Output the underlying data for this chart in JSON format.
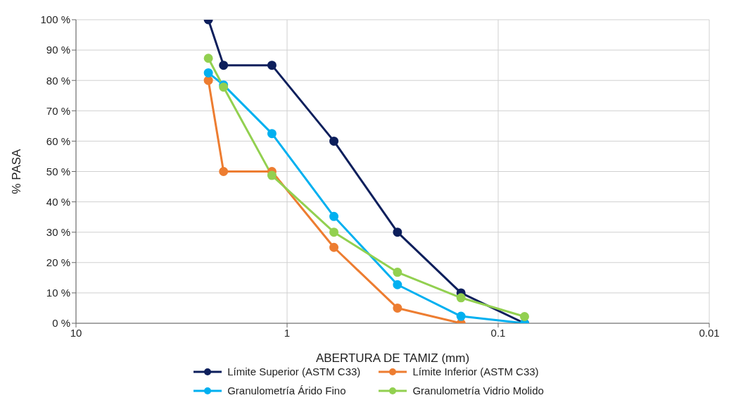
{
  "chart_data": {
    "type": "line",
    "xlabel": "ABERTURA DE TAMIZ (mm)",
    "ylabel": "% PASA",
    "x": [
      2.36,
      2.0,
      1.18,
      0.6,
      0.3,
      0.15,
      0.075
    ],
    "series": [
      {
        "name": "Límite Superior (ASTM C33)",
        "color": "#0d1f5c",
        "values": [
          100,
          85,
          85,
          60,
          30,
          10,
          0
        ]
      },
      {
        "name": "Límite Inferior (ASTM C33)",
        "color": "#ed7d31",
        "values": [
          80,
          50,
          50,
          25,
          5,
          0,
          null
        ]
      },
      {
        "name": "Granulometría Árido Fino",
        "color": "#00b0f0",
        "values": [
          82.5,
          78.5,
          62.5,
          35.2,
          12.7,
          2.3,
          0
        ]
      },
      {
        "name": "Granulometría Vidrio Molido",
        "color": "#92d050",
        "values": [
          87.3,
          77.8,
          48.7,
          30,
          16.8,
          8.4,
          2.2
        ]
      }
    ],
    "log": "x",
    "xlim": [
      10,
      0.01
    ],
    "xticks": [
      10,
      1,
      0.1,
      0.01
    ],
    "ylim": [
      0,
      100
    ],
    "yticks": [
      {
        "value": 0,
        "label": "0 %"
      },
      {
        "value": 10,
        "label": "10 %"
      },
      {
        "value": 20,
        "label": "20 %"
      },
      {
        "value": 30,
        "label": "30 %"
      },
      {
        "value": 40,
        "label": "40 %"
      },
      {
        "value": 50,
        "label": "50 %"
      },
      {
        "value": 60,
        "label": "60 %"
      },
      {
        "value": 70,
        "label": "70 %"
      },
      {
        "value": 80,
        "label": "80 %"
      },
      {
        "value": 90,
        "label": "90 %"
      },
      {
        "value": 100,
        "label": "100 %"
      }
    ],
    "grid": true,
    "legend": "bottom",
    "marker": "circle",
    "line_style": "solid"
  }
}
